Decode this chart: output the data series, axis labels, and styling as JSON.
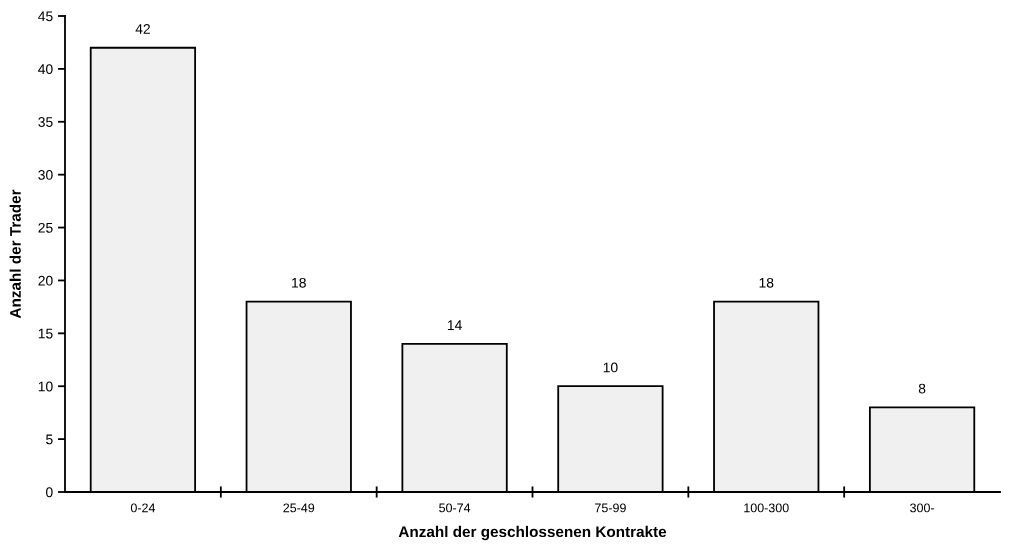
{
  "chart_data": {
    "type": "bar",
    "xlabel": "Anzahl der geschlossenen Kontrakte",
    "ylabel": "Anzahl der Trader",
    "categories": [
      "0-24",
      "25-49",
      "50-74",
      "75-99",
      "100-300",
      "300-"
    ],
    "values": [
      42,
      18,
      14,
      10,
      18,
      8
    ],
    "color": "#f0f0f0",
    "ylim": [
      0,
      45
    ],
    "yticks": [
      0,
      5,
      10,
      15,
      20,
      25,
      30,
      35,
      40,
      45
    ],
    "grid": false,
    "legend": false,
    "data_labels": true
  }
}
